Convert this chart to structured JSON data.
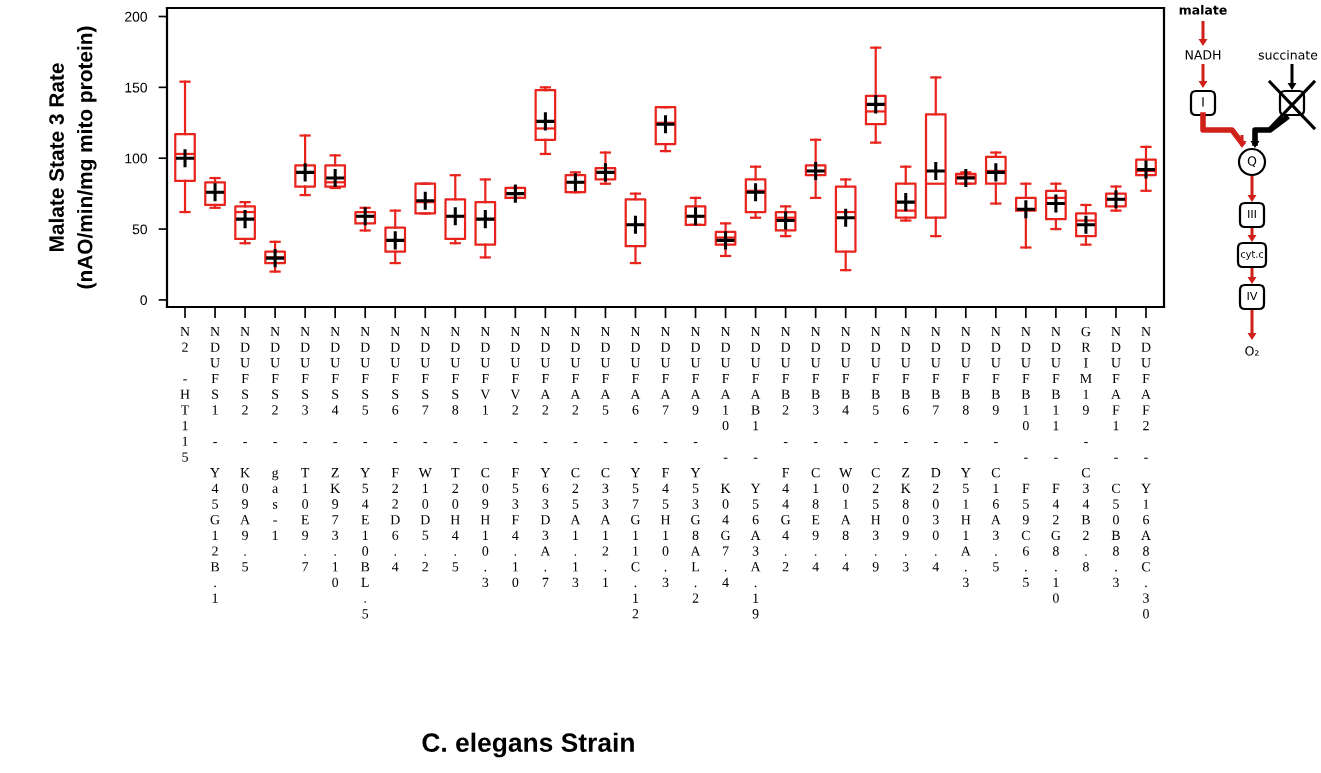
{
  "chart_data": {
    "type": "box",
    "ylabel": "Malate State 3 Rate\n(nAO/min/mg mito protein)",
    "categories": [
      "N2 -HT115",
      "NDUFS1 - Y45G12B.1",
      "NDUFS2 - K09A9.5",
      "NDUFS2 - gas-1",
      "NDUFS3 - T10E9.7",
      "NDUFS4 - ZK973.10",
      "NDUFS5 - Y54E10BL.5",
      "NDUFS6 - F22D6.4",
      "NDUFS7 - W10D5.2",
      "NDUFS8 - T20H4.5",
      "NDUFV1 - C09H10.3",
      "NDUFV2 - F53F4.10",
      "NDUFA2 - Y63D3A.7",
      "NDUFA2 - C25A1.13",
      "NDUFA5 - C33A12.1",
      "NDUFA6 - Y57G11C.12",
      "NDUFA7 - F45H10.3",
      "NDUFA9 - Y53G8AL.2",
      "NDUFA10 - K04G7.4",
      "NDUFAB1 - Y56A3A.19",
      "NDUFB2 - F44G4.2",
      "NDUFB3 - C18E9.4",
      "NDUFB4 - W01A8.4",
      "NDUFB5 - C25H3.9",
      "NDUFB6 - ZK809.3",
      "NDUFB7 - D2030.4",
      "NDUFB8 - Y51H1A.3",
      "NDUFB9 - C16A3.5",
      "NDUFB10 - F59C6.5",
      "NDUFB11 - F42G8.10",
      "GRIM19 - C34B2.8",
      "NDUFAF1 - C50B8.3",
      "NDUFAF2 - Y16A8C.30"
    ],
    "series": [
      {
        "color": "#e8231c",
        "boxes": [
          {
            "low": 62,
            "q1": 84,
            "median": 103,
            "q3": 117,
            "high": 154,
            "mean": 100
          },
          {
            "low": 65,
            "q1": 67,
            "median": 76,
            "q3": 83,
            "high": 86,
            "mean": 76
          },
          {
            "low": 40,
            "q1": 43,
            "median": 62,
            "q3": 66,
            "high": 69,
            "mean": 57
          },
          {
            "low": 20,
            "q1": 26,
            "median": 30,
            "q3": 34,
            "high": 41,
            "mean": 29.5
          },
          {
            "low": 74,
            "q1": 80,
            "median": 90,
            "q3": 95,
            "high": 116,
            "mean": 90
          },
          {
            "low": 79,
            "q1": 80,
            "median": 83,
            "q3": 95,
            "high": 102,
            "mean": 86
          },
          {
            "low": 49,
            "q1": 54,
            "median": 59,
            "q3": 62,
            "high": 65,
            "mean": 59
          },
          {
            "low": 26,
            "q1": 34,
            "median": 42,
            "q3": 51,
            "high": 63,
            "mean": 42
          },
          {
            "low": 61,
            "q1": 61,
            "median": 69,
            "q3": 82,
            "high": 82,
            "mean": 70
          },
          {
            "low": 40,
            "q1": 43,
            "median": 59,
            "q3": 71,
            "high": 88,
            "mean": 59
          },
          {
            "low": 30,
            "q1": 39,
            "median": 57,
            "q3": 69,
            "high": 85,
            "mean": 57
          },
          {
            "low": 72,
            "q1": 72,
            "median": 75,
            "q3": 79,
            "high": 79,
            "mean": 75
          },
          {
            "low": 103,
            "q1": 113,
            "median": 121,
            "q3": 148,
            "high": 150,
            "mean": 126
          },
          {
            "low": 76,
            "q1": 76,
            "median": 83,
            "q3": 88,
            "high": 90,
            "mean": 83
          },
          {
            "low": 82,
            "q1": 85,
            "median": 90,
            "q3": 93,
            "high": 104,
            "mean": 90
          },
          {
            "low": 26,
            "q1": 38,
            "median": 53,
            "q3": 71,
            "high": 75,
            "mean": 53
          },
          {
            "low": 105,
            "q1": 110,
            "median": 125,
            "q3": 136,
            "high": 136,
            "mean": 124
          },
          {
            "low": 53,
            "q1": 53,
            "median": 59,
            "q3": 66,
            "high": 72,
            "mean": 59
          },
          {
            "low": 31,
            "q1": 39,
            "median": 44,
            "q3": 48,
            "high": 54,
            "mean": 42
          },
          {
            "low": 58,
            "q1": 62,
            "median": 77,
            "q3": 85,
            "high": 94,
            "mean": 76
          },
          {
            "low": 45,
            "q1": 49,
            "median": 58,
            "q3": 62,
            "high": 66,
            "mean": 56
          },
          {
            "low": 72,
            "q1": 88,
            "median": 91,
            "q3": 95,
            "high": 113,
            "mean": 91
          },
          {
            "low": 21,
            "q1": 34,
            "median": 62,
            "q3": 80,
            "high": 85,
            "mean": 58
          },
          {
            "low": 111,
            "q1": 124,
            "median": 133,
            "q3": 144,
            "high": 178,
            "mean": 138
          },
          {
            "low": 56,
            "q1": 58,
            "median": 63,
            "q3": 82,
            "high": 94,
            "mean": 69
          },
          {
            "low": 45,
            "q1": 58,
            "median": 82,
            "q3": 131,
            "high": 157,
            "mean": 91
          },
          {
            "low": 82,
            "q1": 82,
            "median": 87,
            "q3": 89,
            "high": 90,
            "mean": 86
          },
          {
            "low": 68,
            "q1": 82,
            "median": 91,
            "q3": 101,
            "high": 104,
            "mean": 90
          },
          {
            "low": 37,
            "q1": 63,
            "median": 64,
            "q3": 72,
            "high": 82,
            "mean": 64
          },
          {
            "low": 50,
            "q1": 57,
            "median": 72,
            "q3": 77,
            "high": 82,
            "mean": 68
          },
          {
            "low": 39,
            "q1": 45,
            "median": 56,
            "q3": 61,
            "high": 67,
            "mean": 53
          },
          {
            "low": 63,
            "q1": 66,
            "median": 71,
            "q3": 75,
            "high": 80,
            "mean": 71
          },
          {
            "low": 77,
            "q1": 88,
            "median": 91,
            "q3": 99,
            "high": 108,
            "mean": 92
          }
        ]
      }
    ],
    "ylim": [
      -5,
      206
    ],
    "yticks": [
      0,
      50,
      100,
      150,
      200
    ],
    "grid": false,
    "legend": false,
    "annotations": [
      "C. elegans Strain",
      "malate",
      "NADH",
      "succinate",
      "I",
      "Q",
      "III",
      "cyt.c",
      "IV",
      "O₂"
    ]
  }
}
